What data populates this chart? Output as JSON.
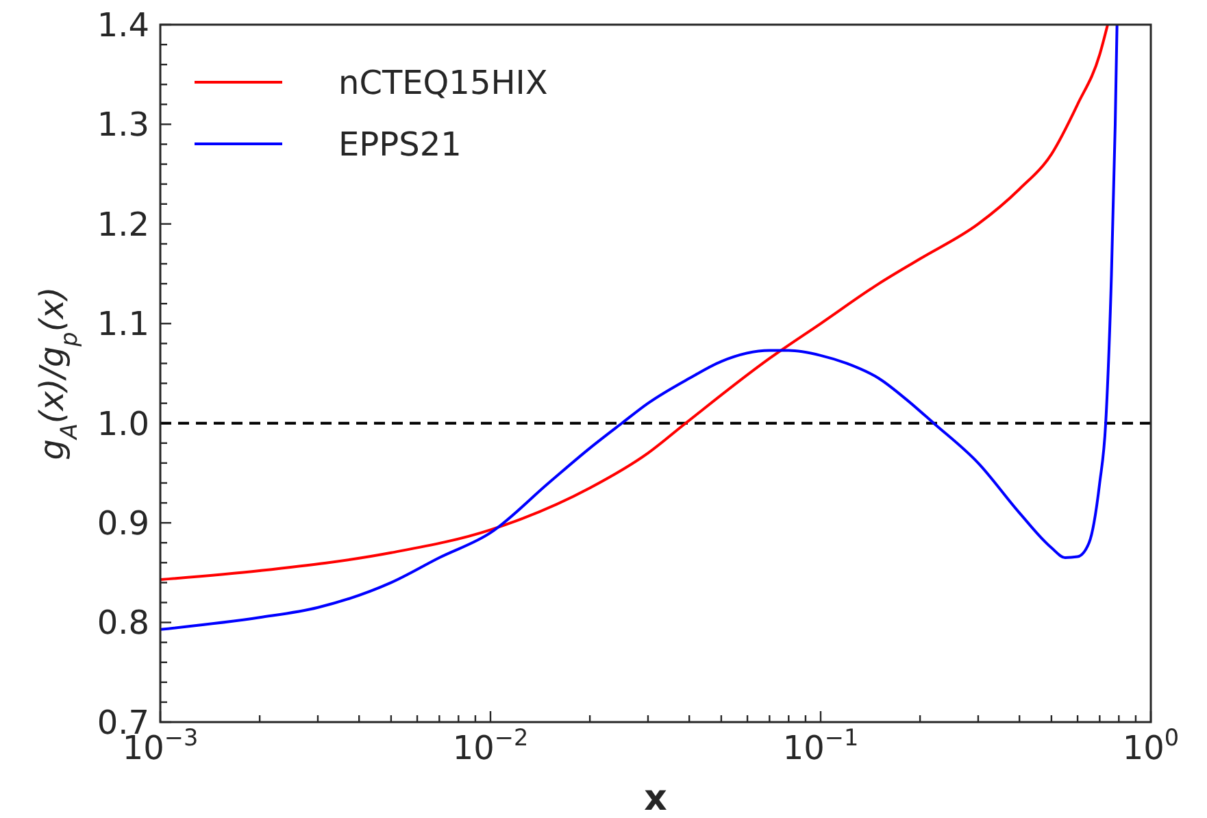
{
  "chart_data": {
    "type": "line",
    "xlabel": "x",
    "ylabel": "g$_{A}$(x)/g$_{p}$(x)",
    "log": "x",
    "grid": false,
    "legend": "top left",
    "line_style": "solid",
    "marker": "none",
    "xlim": [
      0.001,
      1
    ],
    "ylim": [
      0.7,
      1.4
    ],
    "xticks": [
      {
        "value": 0.001,
        "label": "10$^{−3}$"
      },
      {
        "value": 0.002,
        "label": null
      },
      {
        "value": 0.003,
        "label": null
      },
      {
        "value": 0.004,
        "label": null
      },
      {
        "value": 0.005,
        "label": null
      },
      {
        "value": 0.006,
        "label": null
      },
      {
        "value": 0.007,
        "label": null
      },
      {
        "value": 0.008,
        "label": null
      },
      {
        "value": 0.009,
        "label": null
      },
      {
        "value": 0.01,
        "label": "10$^{−2}$"
      },
      {
        "value": 0.02,
        "label": null
      },
      {
        "value": 0.03,
        "label": null
      },
      {
        "value": 0.04,
        "label": null
      },
      {
        "value": 0.05,
        "label": null
      },
      {
        "value": 0.06,
        "label": null
      },
      {
        "value": 0.07,
        "label": null
      },
      {
        "value": 0.08,
        "label": null
      },
      {
        "value": 0.09,
        "label": null
      },
      {
        "value": 0.1,
        "label": "10$^{−1}$"
      },
      {
        "value": 0.2,
        "label": null
      },
      {
        "value": 0.3,
        "label": null
      },
      {
        "value": 0.4,
        "label": null
      },
      {
        "value": 0.5,
        "label": null
      },
      {
        "value": 0.6,
        "label": null
      },
      {
        "value": 0.7,
        "label": null
      },
      {
        "value": 0.8,
        "label": null
      },
      {
        "value": 0.9,
        "label": null
      },
      {
        "value": 1,
        "label": "10$^{0}$"
      }
    ],
    "yticks": [
      0.7,
      {
        "value": 0.72,
        "label": null
      },
      {
        "value": 0.74,
        "label": null
      },
      {
        "value": 0.76,
        "label": null
      },
      {
        "value": 0.78,
        "label": null
      },
      0.8,
      {
        "value": 0.82,
        "label": null
      },
      {
        "value": 0.84,
        "label": null
      },
      {
        "value": 0.86,
        "label": null
      },
      {
        "value": 0.88,
        "label": null
      },
      0.9,
      {
        "value": 0.92,
        "label": null
      },
      {
        "value": 0.94,
        "label": null
      },
      {
        "value": 0.96,
        "label": null
      },
      {
        "value": 0.98,
        "label": null
      },
      {
        "value": 1,
        "label": "1.0"
      },
      {
        "value": 1.02,
        "label": null
      },
      {
        "value": 1.04,
        "label": null
      },
      {
        "value": 1.06,
        "label": null
      },
      {
        "value": 1.08,
        "label": null
      },
      1.1,
      {
        "value": 1.12,
        "label": null
      },
      {
        "value": 1.14,
        "label": null
      },
      {
        "value": 1.16,
        "label": null
      },
      {
        "value": 1.18,
        "label": null
      },
      1.2,
      {
        "value": 1.22,
        "label": null
      },
      {
        "value": 1.24,
        "label": null
      },
      {
        "value": 1.26,
        "label": null
      },
      {
        "value": 1.28,
        "label": null
      },
      1.3,
      {
        "value": 1.32,
        "label": null
      },
      {
        "value": 1.34,
        "label": null
      },
      {
        "value": 1.36,
        "label": null
      },
      {
        "value": 1.38,
        "label": null
      },
      1.4
    ],
    "ref_lines": [
      {
        "axis": "y",
        "value": 1,
        "color": "#000000",
        "line_style": "dashed"
      }
    ],
    "series": [
      {
        "name": "nCTEQ15HIX",
        "color": "#ff0000",
        "x": [
          0.001,
          0.002,
          0.005,
          0.01,
          0.02,
          0.03,
          0.039,
          0.07,
          0.1,
          0.15,
          0.2,
          0.3,
          0.4,
          0.5,
          0.6,
          0.7,
          0.74
        ],
        "values": [
          0.843,
          0.852,
          0.87,
          0.893,
          0.935,
          0.97,
          1.0,
          1.065,
          1.1,
          1.14,
          1.165,
          1.2,
          1.235,
          1.27,
          1.32,
          1.37,
          1.4
        ]
      },
      {
        "name": "EPPS21",
        "color": "#0000ff",
        "x": [
          0.001,
          0.002,
          0.003,
          0.005,
          0.007,
          0.01,
          0.015,
          0.02,
          0.025,
          0.03,
          0.04,
          0.05,
          0.07,
          0.08,
          0.1,
          0.12,
          0.15,
          0.18,
          0.22,
          0.3,
          0.4,
          0.5,
          0.55,
          0.6,
          0.65,
          0.7,
          0.73,
          0.76,
          0.78,
          0.79
        ],
        "values": [
          0.793,
          0.805,
          0.815,
          0.84,
          0.865,
          0.89,
          0.94,
          0.975,
          1.0,
          1.02,
          1.045,
          1.062,
          1.073,
          1.073,
          1.068,
          1.06,
          1.045,
          1.025,
          1.0,
          0.96,
          0.91,
          0.875,
          0.865,
          0.866,
          0.88,
          0.94,
          1.0,
          1.15,
          1.3,
          1.4
        ]
      }
    ]
  }
}
